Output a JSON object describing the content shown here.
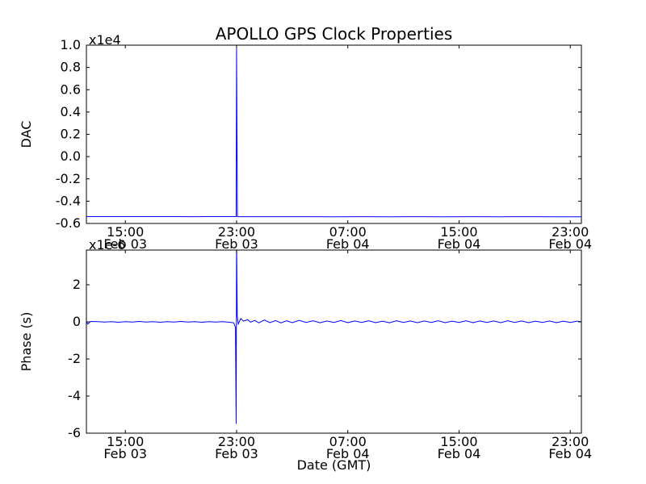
{
  "background": "#ffffff",
  "axis_color": "#000000",
  "chart_data": [
    {
      "type": "line",
      "title": "APOLLO GPS Clock Properties",
      "xlabel": "",
      "ylabel": "DAC",
      "offset_text": "x1e4",
      "x_unit": "hours since Feb 03 00:00 GMT",
      "y_unit": "DAC counts x1e4",
      "xlim": [
        12.2,
        47.8
      ],
      "ylim": [
        -0.6,
        1.0
      ],
      "grid": false,
      "legend": "none",
      "yticks": [
        {
          "v": 1.0,
          "label": "1.0"
        },
        {
          "v": 0.8,
          "label": "0.8"
        },
        {
          "v": 0.6,
          "label": "0.6"
        },
        {
          "v": 0.4,
          "label": "0.4"
        },
        {
          "v": 0.2,
          "label": "0.2"
        },
        {
          "v": 0.0,
          "label": "0.0"
        },
        {
          "v": -0.2,
          "label": "-0.2"
        },
        {
          "v": -0.4,
          "label": "-0.4"
        },
        {
          "v": -0.6,
          "label": "-0.6"
        }
      ],
      "xticks": [
        {
          "v": 15,
          "line1": "15:00",
          "line2": "Feb 03"
        },
        {
          "v": 23,
          "line1": "23:00",
          "line2": "Feb 03"
        },
        {
          "v": 31,
          "line1": "07:00",
          "line2": "Feb 04"
        },
        {
          "v": 39,
          "line1": "15:00",
          "line2": "Feb 04"
        },
        {
          "v": 47,
          "line1": "23:00",
          "line2": "Feb 04"
        }
      ],
      "series": [
        {
          "name": "DAC",
          "color": "#0000ff",
          "points": [
            [
              12.2,
              -0.538
            ],
            [
              14,
              -0.538
            ],
            [
              16,
              -0.538
            ],
            [
              18,
              -0.538
            ],
            [
              20,
              -0.539
            ],
            [
              22,
              -0.538
            ],
            [
              22.9,
              -0.538
            ],
            [
              22.97,
              -0.538
            ],
            [
              23.0,
              0.97
            ],
            [
              23.06,
              -0.539
            ],
            [
              24,
              -0.539
            ],
            [
              26,
              -0.539
            ],
            [
              28,
              -0.539
            ],
            [
              30,
              -0.54
            ],
            [
              32,
              -0.539
            ],
            [
              34,
              -0.54
            ],
            [
              36,
              -0.539
            ],
            [
              38,
              -0.54
            ],
            [
              40,
              -0.539
            ],
            [
              42,
              -0.54
            ],
            [
              44,
              -0.539
            ],
            [
              46,
              -0.54
            ],
            [
              47.8,
              -0.54
            ]
          ]
        }
      ]
    },
    {
      "type": "line",
      "title": "",
      "xlabel": "Date (GMT)",
      "ylabel": "Phase (s)",
      "offset_text": "x1e-6",
      "x_unit": "hours since Feb 03 00:00 GMT",
      "y_unit": "seconds x1e-6",
      "xlim": [
        12.2,
        47.8
      ],
      "ylim": [
        -6,
        3.87
      ],
      "grid": false,
      "legend": "none",
      "yticks": [
        {
          "v": 2,
          "label": "2"
        },
        {
          "v": 0,
          "label": "0"
        },
        {
          "v": -2,
          "label": "-2"
        },
        {
          "v": -4,
          "label": "-4"
        },
        {
          "v": -6,
          "label": "-6"
        }
      ],
      "xticks": [
        {
          "v": 15,
          "line1": "15:00",
          "line2": "Feb 03"
        },
        {
          "v": 23,
          "line1": "23:00",
          "line2": "Feb 03"
        },
        {
          "v": 31,
          "line1": "07:00",
          "line2": "Feb 04"
        },
        {
          "v": 39,
          "line1": "15:00",
          "line2": "Feb 04"
        },
        {
          "v": 47,
          "line1": "23:00",
          "line2": "Feb 04"
        }
      ],
      "series": [
        {
          "name": "Phase",
          "color": "#0000ff",
          "points": [
            [
              12.2,
              0.0
            ],
            [
              12.3,
              -0.12
            ],
            [
              12.5,
              0.02
            ],
            [
              13,
              0.01
            ],
            [
              13.5,
              -0.01
            ],
            [
              14,
              0.01
            ],
            [
              14.5,
              -0.02
            ],
            [
              15,
              0.01
            ],
            [
              15.5,
              -0.01
            ],
            [
              16,
              0.02
            ],
            [
              16.5,
              -0.01
            ],
            [
              17,
              0.01
            ],
            [
              17.5,
              -0.02
            ],
            [
              18,
              0.01
            ],
            [
              18.5,
              -0.01
            ],
            [
              19,
              0.02
            ],
            [
              19.5,
              -0.01
            ],
            [
              20,
              0.01
            ],
            [
              20.5,
              -0.02
            ],
            [
              21,
              0.01
            ],
            [
              21.5,
              -0.01
            ],
            [
              22,
              0.01
            ],
            [
              22.5,
              -0.02
            ],
            [
              22.8,
              -0.05
            ],
            [
              22.92,
              -0.3
            ],
            [
              22.97,
              -5.5
            ],
            [
              23.0,
              4.5
            ],
            [
              23.05,
              0.3
            ],
            [
              23.12,
              -0.12
            ],
            [
              23.3,
              0.18
            ],
            [
              23.5,
              0.04
            ],
            [
              23.8,
              0.12
            ],
            [
              24,
              -0.02
            ],
            [
              24.3,
              0.08
            ],
            [
              24.6,
              -0.05
            ],
            [
              25,
              0.1
            ],
            [
              25.4,
              -0.04
            ],
            [
              25.8,
              0.07
            ],
            [
              26.2,
              -0.05
            ],
            [
              26.6,
              0.06
            ],
            [
              27,
              -0.04
            ],
            [
              27.5,
              0.08
            ],
            [
              28,
              -0.03
            ],
            [
              28.5,
              0.06
            ],
            [
              29,
              -0.05
            ],
            [
              29.5,
              0.05
            ],
            [
              30,
              -0.03
            ],
            [
              30.5,
              0.07
            ],
            [
              31,
              -0.04
            ],
            [
              31.5,
              0.05
            ],
            [
              32,
              -0.03
            ],
            [
              32.5,
              0.06
            ],
            [
              33,
              -0.04
            ],
            [
              33.5,
              0.04
            ],
            [
              34,
              -0.05
            ],
            [
              34.5,
              0.06
            ],
            [
              35,
              -0.03
            ],
            [
              35.5,
              0.05
            ],
            [
              36,
              -0.04
            ],
            [
              36.5,
              0.05
            ],
            [
              37,
              -0.03
            ],
            [
              37.5,
              0.06
            ],
            [
              38,
              -0.04
            ],
            [
              38.5,
              0.04
            ],
            [
              39,
              -0.03
            ],
            [
              39.5,
              0.06
            ],
            [
              40,
              -0.04
            ],
            [
              40.5,
              0.05
            ],
            [
              41,
              -0.03
            ],
            [
              41.5,
              0.05
            ],
            [
              42,
              -0.04
            ],
            [
              42.5,
              0.06
            ],
            [
              43,
              -0.03
            ],
            [
              43.5,
              0.05
            ],
            [
              44,
              -0.04
            ],
            [
              44.5,
              0.04
            ],
            [
              45,
              -0.03
            ],
            [
              45.5,
              0.05
            ],
            [
              46,
              -0.04
            ],
            [
              46.5,
              0.04
            ],
            [
              47,
              -0.03
            ],
            [
              47.5,
              0.04
            ],
            [
              47.8,
              0.0
            ]
          ]
        }
      ]
    }
  ]
}
